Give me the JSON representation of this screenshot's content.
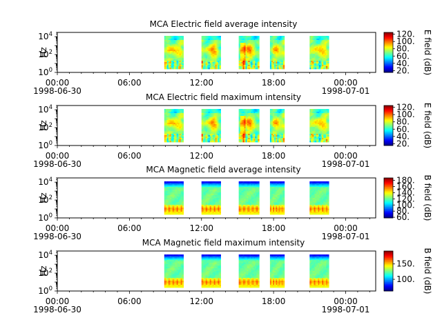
{
  "chart_data": [
    {
      "type": "heatmap",
      "title": "MCA  Electric field average intensity",
      "ylabel": "Hz",
      "y_scale": "log",
      "ylim": [
        1,
        30000
      ],
      "y_ticks": [
        {
          "v": 1,
          "b": "10",
          "e": "0"
        },
        {
          "v": 100,
          "b": "10",
          "e": "2"
        },
        {
          "v": 10000,
          "b": "10",
          "e": "4"
        }
      ],
      "x_ticks": [
        {
          "t": 0,
          "time": "00:00",
          "date": "1998-06-30"
        },
        {
          "t": 6,
          "time": "06:00",
          "date": ""
        },
        {
          "t": 12,
          "time": "12:00",
          "date": ""
        },
        {
          "t": 18,
          "time": "18:00",
          "date": ""
        },
        {
          "t": 24,
          "time": "00:00",
          "date": "1998-07-01"
        }
      ],
      "xlim_hours": [
        0,
        26.5
      ],
      "colorbar": {
        "label": "E field (dB)",
        "range": [
          15,
          125
        ],
        "ticks": [
          "20.",
          "40.",
          "60.",
          "80.",
          "100.",
          "120."
        ],
        "tick_values": [
          20,
          40,
          60,
          80,
          100,
          120
        ]
      },
      "segments_hours": [
        [
          8.9,
          10.5
        ],
        [
          12.0,
          13.6
        ],
        [
          15.1,
          16.8
        ],
        [
          17.7,
          18.9
        ],
        [
          21.0,
          22.6
        ]
      ],
      "pattern": "electric"
    },
    {
      "type": "heatmap",
      "title": "MCA  Electric field maximum intensity",
      "ylabel": "Hz",
      "y_scale": "log",
      "ylim": [
        1,
        30000
      ],
      "y_ticks": [
        {
          "v": 1,
          "b": "10",
          "e": "0"
        },
        {
          "v": 100,
          "b": "10",
          "e": "2"
        },
        {
          "v": 10000,
          "b": "10",
          "e": "4"
        }
      ],
      "x_ticks": [
        {
          "t": 0,
          "time": "00:00",
          "date": "1998-06-30"
        },
        {
          "t": 6,
          "time": "06:00",
          "date": ""
        },
        {
          "t": 12,
          "time": "12:00",
          "date": ""
        },
        {
          "t": 18,
          "time": "18:00",
          "date": ""
        },
        {
          "t": 24,
          "time": "00:00",
          "date": "1998-07-01"
        }
      ],
      "xlim_hours": [
        0,
        26.5
      ],
      "colorbar": {
        "label": "E field (dB)",
        "range": [
          15,
          125
        ],
        "ticks": [
          "20.",
          "40.",
          "60.",
          "80.",
          "100.",
          "120."
        ],
        "tick_values": [
          20,
          40,
          60,
          80,
          100,
          120
        ]
      },
      "segments_hours": [
        [
          8.9,
          10.5
        ],
        [
          12.0,
          13.6
        ],
        [
          15.1,
          16.8
        ],
        [
          17.7,
          18.9
        ],
        [
          21.0,
          22.6
        ]
      ],
      "pattern": "electric"
    },
    {
      "type": "heatmap",
      "title": "MCA  Magnetic field average intensity",
      "ylabel": "Hz",
      "y_scale": "log",
      "ylim": [
        1,
        30000
      ],
      "y_ticks": [
        {
          "v": 1,
          "b": "10",
          "e": "0"
        },
        {
          "v": 100,
          "b": "10",
          "e": "2"
        },
        {
          "v": 10000,
          "b": "10",
          "e": "4"
        }
      ],
      "x_ticks": [
        {
          "t": 0,
          "time": "00:00",
          "date": "1998-06-30"
        },
        {
          "t": 6,
          "time": "06:00",
          "date": ""
        },
        {
          "t": 12,
          "time": "12:00",
          "date": ""
        },
        {
          "t": 18,
          "time": "18:00",
          "date": ""
        },
        {
          "t": 24,
          "time": "00:00",
          "date": "1998-07-01"
        }
      ],
      "xlim_hours": [
        0,
        26.5
      ],
      "colorbar": {
        "label": "B field (dB)",
        "range": [
          58,
          188
        ],
        "ticks": [
          "60.",
          "80.",
          "100.",
          "120.",
          "140.",
          "160.",
          "180."
        ],
        "tick_values": [
          60,
          80,
          100,
          120,
          140,
          160,
          180
        ]
      },
      "segments_hours": [
        [
          8.9,
          10.5
        ],
        [
          12.0,
          13.6
        ],
        [
          15.1,
          16.8
        ],
        [
          17.7,
          18.9
        ],
        [
          21.0,
          22.6
        ]
      ],
      "pattern": "magnetic"
    },
    {
      "type": "heatmap",
      "title": "MCA  Magnetic field maximum intensity",
      "ylabel": "Hz",
      "y_scale": "log",
      "ylim": [
        1,
        30000
      ],
      "y_ticks": [
        {
          "v": 1,
          "b": "10",
          "e": "0"
        },
        {
          "v": 100,
          "b": "10",
          "e": "2"
        },
        {
          "v": 10000,
          "b": "10",
          "e": "4"
        }
      ],
      "x_ticks": [
        {
          "t": 0,
          "time": "00:00",
          "date": "1998-06-30"
        },
        {
          "t": 6,
          "time": "06:00",
          "date": ""
        },
        {
          "t": 12,
          "time": "12:00",
          "date": ""
        },
        {
          "t": 18,
          "time": "18:00",
          "date": ""
        },
        {
          "t": 24,
          "time": "00:00",
          "date": "1998-07-01"
        }
      ],
      "xlim_hours": [
        0,
        26.5
      ],
      "colorbar": {
        "label": "B field (dB)",
        "range": [
          62,
          192
        ],
        "ticks": [
          "100.",
          "150."
        ],
        "tick_values": [
          100,
          150
        ]
      },
      "segments_hours": [
        [
          8.9,
          10.5
        ],
        [
          12.0,
          13.6
        ],
        [
          15.1,
          16.8
        ],
        [
          17.7,
          18.9
        ],
        [
          21.0,
          22.6
        ]
      ],
      "pattern": "magnetic"
    }
  ]
}
